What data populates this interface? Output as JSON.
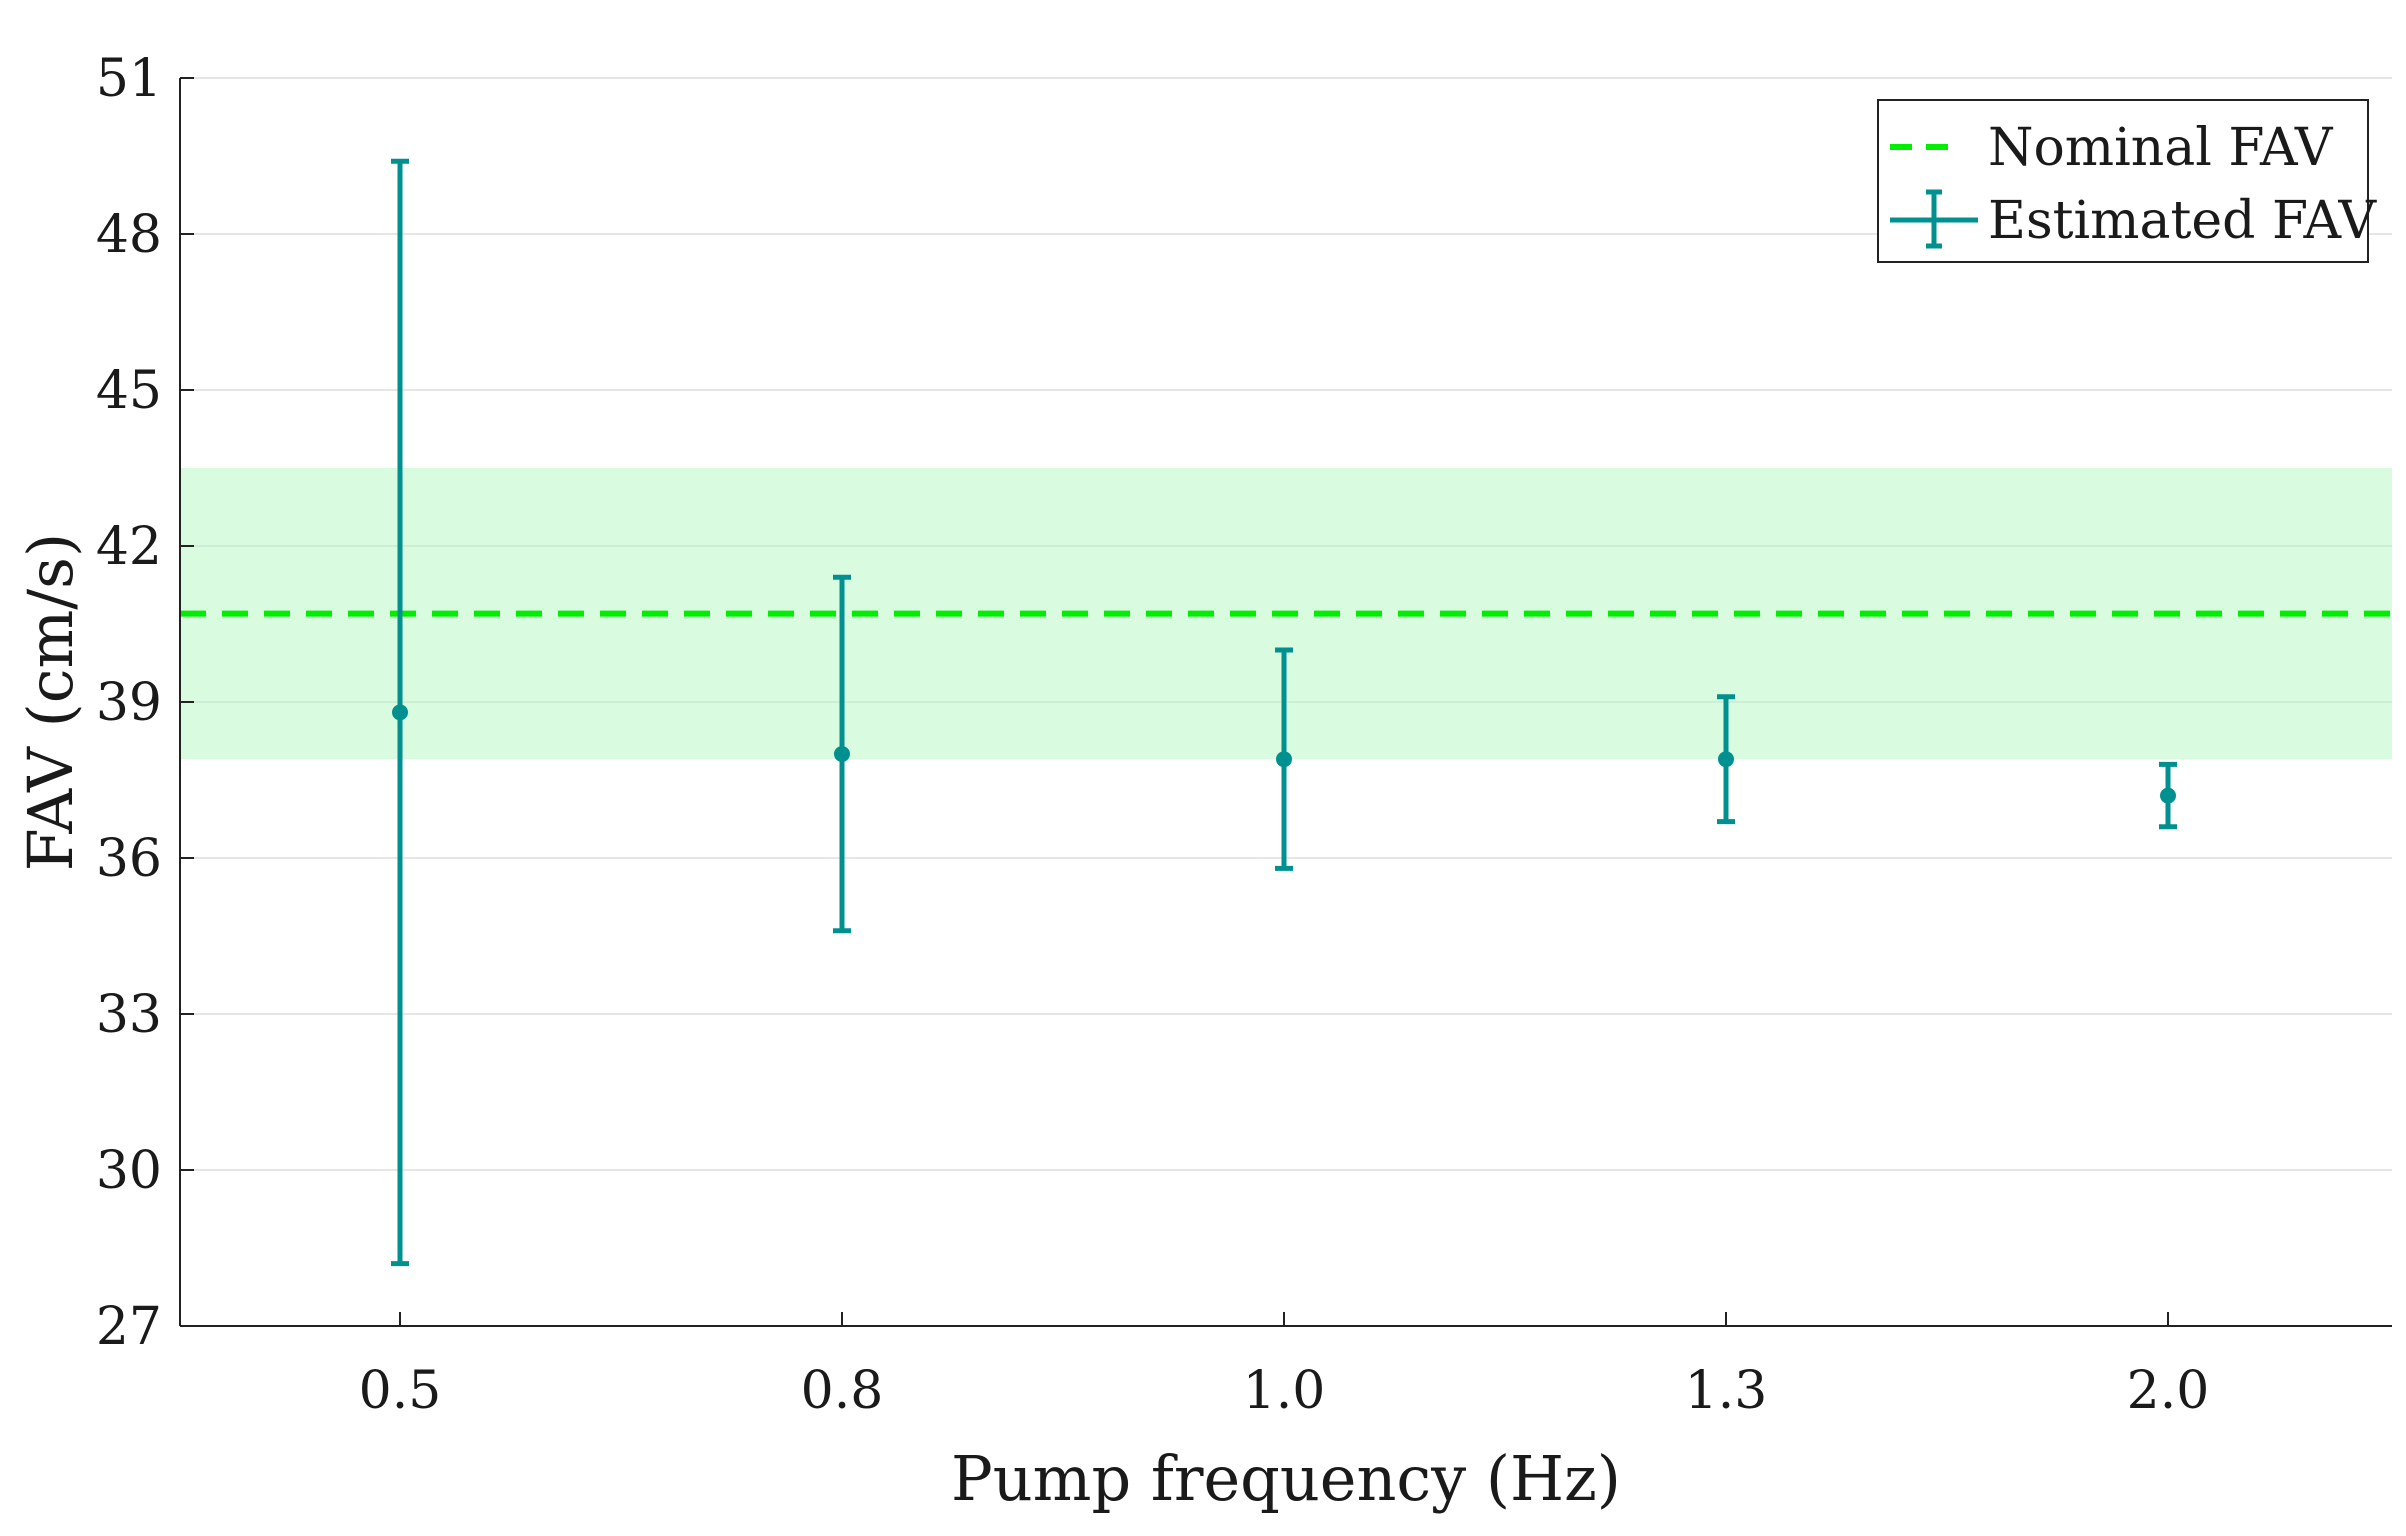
{
  "chart_data": {
    "type": "errorbar",
    "title": "",
    "xlabel": "Pump frequency (Hz)",
    "ylabel": "FAV (cm/s)",
    "ylim": [
      27,
      51
    ],
    "yticks": [
      "27",
      "30",
      "33",
      "36",
      "39",
      "42",
      "45",
      "48",
      "51"
    ],
    "ytick_values": [
      27,
      30,
      33,
      36,
      39,
      42,
      45,
      48,
      51
    ],
    "categories": [
      "0.5",
      "0.8",
      "1.0",
      "1.3",
      "2.0"
    ],
    "grid": "horizontal",
    "legend_position": "top-right",
    "nominal": {
      "name": "Nominal FAV",
      "value": 40.7,
      "band": [
        37.9,
        43.5
      ],
      "color": "#00ee00",
      "band_color": "#d9fbe0"
    },
    "series": [
      {
        "name": "Estimated FAV",
        "color": "#009090",
        "values": [
          38.8,
          38.0,
          37.9,
          37.9,
          37.2
        ],
        "lower": [
          28.2,
          34.6,
          35.8,
          36.7,
          36.6
        ],
        "upper": [
          49.4,
          41.4,
          40.0,
          39.1,
          37.8
        ]
      }
    ]
  }
}
